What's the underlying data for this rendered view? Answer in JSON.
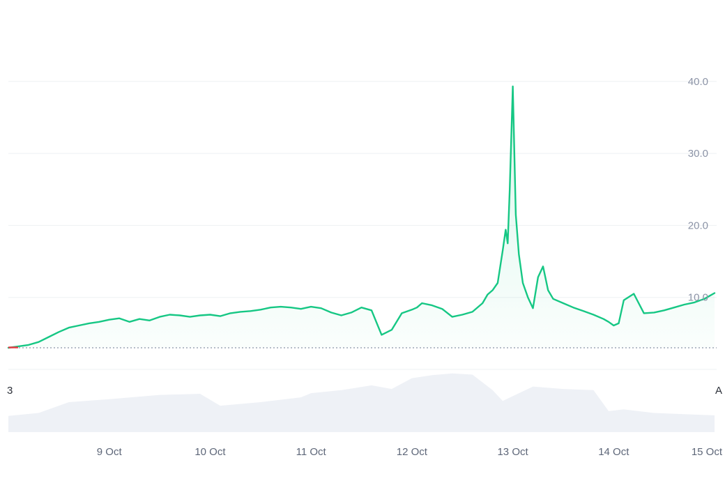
{
  "chart_data": {
    "type": "area",
    "x_tick_labels": [
      "9 Oct",
      "10 Oct",
      "11 Oct",
      "12 Oct",
      "13 Oct",
      "14 Oct",
      "15 Oct"
    ],
    "y_tick_labels": [
      "10.0",
      "20.0",
      "30.0",
      "40.0"
    ],
    "left_edge_label": "3",
    "right_edge_label": "A",
    "ylim": [
      0,
      50
    ],
    "baseline_value": 3.0,
    "grid": true,
    "colors": {
      "line": "#16c784",
      "below_baseline": "#ea3943",
      "area_fill": "#16c784",
      "baseline": "#8b93a6",
      "grid": "#eef0f3",
      "volume": "#eef1f6"
    },
    "series": [
      {
        "x": [
          8.0,
          8.1,
          8.2,
          8.3,
          8.4,
          8.5,
          8.6,
          8.7,
          8.8,
          8.9,
          9.0,
          9.1,
          9.2,
          9.3,
          9.4,
          9.5,
          9.6,
          9.7,
          9.8,
          9.9,
          10.0,
          10.1,
          10.2,
          10.3,
          10.4,
          10.5,
          10.6,
          10.7,
          10.8,
          10.9,
          11.0,
          11.1,
          11.2,
          11.3,
          11.4,
          11.5,
          11.6,
          11.65,
          11.7,
          11.8,
          11.9,
          12.0,
          12.05,
          12.1,
          12.2,
          12.3,
          12.4,
          12.5,
          12.6,
          12.7,
          12.75,
          12.8,
          12.85,
          12.9,
          12.93,
          12.95,
          12.97,
          13.0,
          13.03,
          13.06,
          13.1,
          13.15,
          13.2,
          13.25,
          13.3,
          13.35,
          13.4,
          13.5,
          13.6,
          13.7,
          13.8,
          13.9,
          13.95,
          14.0,
          14.05,
          14.1,
          14.2,
          14.3,
          14.4,
          14.5,
          14.6,
          14.7,
          14.8,
          14.9,
          14.95,
          15.0
        ],
        "y": [
          3.0,
          3.2,
          3.4,
          3.8,
          4.5,
          5.2,
          5.8,
          6.1,
          6.4,
          6.6,
          6.9,
          7.1,
          6.6,
          7.0,
          6.8,
          7.3,
          7.6,
          7.5,
          7.3,
          7.5,
          7.6,
          7.4,
          7.8,
          8.0,
          8.1,
          8.3,
          8.6,
          8.7,
          8.6,
          8.4,
          8.7,
          8.5,
          7.9,
          7.5,
          7.9,
          8.6,
          8.2,
          6.5,
          4.8,
          5.5,
          7.8,
          8.3,
          8.6,
          9.2,
          8.9,
          8.4,
          7.3,
          7.6,
          8.0,
          9.2,
          10.4,
          11.0,
          12.0,
          16.5,
          19.4,
          17.5,
          25.0,
          39.3,
          21.5,
          16.0,
          12.0,
          10.0,
          8.5,
          12.8,
          14.3,
          11.0,
          9.8,
          9.2,
          8.6,
          8.1,
          7.6,
          7.0,
          6.6,
          6.1,
          6.4,
          9.6,
          10.5,
          7.8,
          7.9,
          8.2,
          8.6,
          9.0,
          9.3,
          9.8,
          10.2,
          10.6
        ]
      }
    ],
    "volume": {
      "x": [
        8.0,
        8.3,
        8.6,
        9.0,
        9.5,
        9.9,
        10.1,
        10.5,
        10.9,
        11.0,
        11.3,
        11.6,
        11.8,
        12.0,
        12.2,
        12.4,
        12.6,
        12.8,
        12.9,
        13.2,
        13.5,
        13.8,
        13.95,
        14.1,
        14.4,
        14.7,
        15.0
      ],
      "values": [
        0.27,
        0.32,
        0.5,
        0.55,
        0.62,
        0.64,
        0.44,
        0.5,
        0.58,
        0.65,
        0.7,
        0.78,
        0.72,
        0.9,
        0.95,
        0.98,
        0.96,
        0.7,
        0.52,
        0.76,
        0.72,
        0.7,
        0.35,
        0.38,
        0.32,
        0.3,
        0.28
      ]
    }
  }
}
